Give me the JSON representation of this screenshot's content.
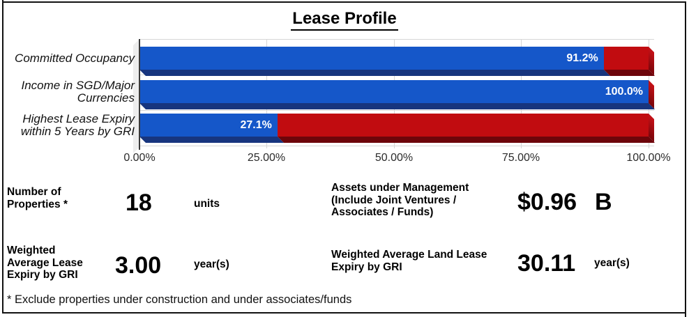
{
  "title": "Lease Profile",
  "chart_data": {
    "type": "bar",
    "orientation": "horizontal",
    "stacked": true,
    "style": "3d",
    "categories": [
      "Committed Occupancy",
      "Income in SGD/Major\nCurrencies",
      "Highest Lease Expiry\nwithin 5 Years by GRI"
    ],
    "series": [
      {
        "name": "Blue segment",
        "color": "#1557C9",
        "values": [
          91.2,
          100.0,
          27.1
        ]
      },
      {
        "name": "Red remainder",
        "color": "#C10C10",
        "values": [
          8.8,
          0.0,
          72.9
        ]
      }
    ],
    "bar_labels": [
      "91.2%",
      "100.0%",
      "27.1%"
    ],
    "x_ticks": [
      "0.00%",
      "25.00%",
      "50.00%",
      "75.00%",
      "100.00%"
    ],
    "xlim": [
      0,
      100
    ],
    "grid": true,
    "legend": "none"
  },
  "stats": {
    "properties": {
      "label": "Number of\nProperties *",
      "value": "18",
      "unit": "units"
    },
    "aum": {
      "label": "Assets under Management\n(Include Joint Ventures /\nAssociates / Funds)",
      "value": "$0.96",
      "unit": "B"
    },
    "wale": {
      "label": "Weighted\nAverage Lease\nExpiry by GRI",
      "value": "3.00",
      "unit": "year(s)"
    },
    "land_lease": {
      "label": "Weighted Average Land Lease\nExpiry by GRI",
      "value": "30.11",
      "unit": "year(s)"
    }
  },
  "footnote": "* Exclude properties under construction and under associates/funds",
  "colors": {
    "bar_blue": "#1557C9",
    "bar_blue_dark": "#17357E",
    "bar_red": "#C10C10",
    "bar_red_dark": "#6D050A",
    "cap_top": "#C11016",
    "cap_bottom": "#7C060B",
    "gridline": "#D6D6D6",
    "wall": "#EDEDED"
  }
}
